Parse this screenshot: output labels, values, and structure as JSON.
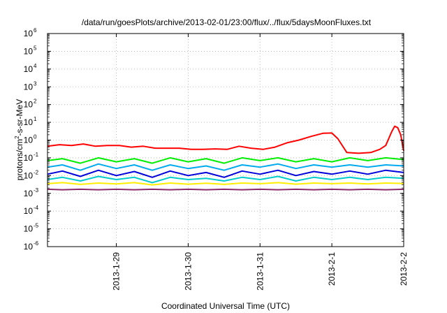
{
  "chart_data": {
    "type": "line",
    "title": "/data/run/goesPlots/archive/2013-02-01/23:00/flux/../flux/5daysMoonFluxes.txt",
    "xlabel": "Coordinated Universal Time (UTC)",
    "ylabel": "protons/cm2-s-sr-MeV",
    "ylabel_parts": {
      "pre": "protons/cm",
      "sup": "2",
      "post": "-s-sr-MeV"
    },
    "y_scale": "log",
    "ylim": [
      1e-06,
      1000000.0
    ],
    "xlim": [
      "2013-01-28T01:00",
      "2013-02-02T00:00"
    ],
    "y_ticks": [
      {
        "value": 1e-06,
        "base": "10",
        "exp": "-6"
      },
      {
        "value": 1e-05,
        "base": "10",
        "exp": "-5"
      },
      {
        "value": 0.0001,
        "base": "10",
        "exp": "-4"
      },
      {
        "value": 0.001,
        "base": "10",
        "exp": "-3"
      },
      {
        "value": 0.01,
        "base": "10",
        "exp": "-2"
      },
      {
        "value": 0.1,
        "base": "10",
        "exp": "-1"
      },
      {
        "value": 1.0,
        "base": "10",
        "exp": "0"
      },
      {
        "value": 10.0,
        "base": "10",
        "exp": "1"
      },
      {
        "value": 100.0,
        "base": "10",
        "exp": "2"
      },
      {
        "value": 1000.0,
        "base": "10",
        "exp": "3"
      },
      {
        "value": 10000.0,
        "base": "10",
        "exp": "4"
      },
      {
        "value": 100000.0,
        "base": "10",
        "exp": "5"
      },
      {
        "value": 1000000.0,
        "base": "10",
        "exp": "6"
      }
    ],
    "x_ticks": [
      {
        "value": "2013-01-29T00:00",
        "label": "2013-1-29"
      },
      {
        "value": "2013-01-30T00:00",
        "label": "2013-1-30"
      },
      {
        "value": "2013-01-31T00:00",
        "label": "2013-1-31"
      },
      {
        "value": "2013-02-01T00:00",
        "label": "2013-2-1"
      },
      {
        "value": "2013-02-02T00:00",
        "label": "2013-2-2"
      }
    ],
    "grid": true,
    "series": [
      {
        "color": "#ff0000",
        "x": [
          "2013-01-28T01:00",
          "2013-01-28T05:00",
          "2013-01-28T09:00",
          "2013-01-28T13:00",
          "2013-01-28T17:00",
          "2013-01-28T21:00",
          "2013-01-29T01:00",
          "2013-01-29T05:00",
          "2013-01-29T09:00",
          "2013-01-29T13:00",
          "2013-01-29T17:00",
          "2013-01-29T21:00",
          "2013-01-30T01:00",
          "2013-01-30T05:00",
          "2013-01-30T09:00",
          "2013-01-30T13:00",
          "2013-01-30T17:00",
          "2013-01-30T21:00",
          "2013-01-31T01:00",
          "2013-01-31T05:00",
          "2013-01-31T09:00",
          "2013-01-31T13:00",
          "2013-01-31T17:00",
          "2013-01-31T21:00",
          "2013-02-01T00:00",
          "2013-02-01T02:00",
          "2013-02-01T05:00",
          "2013-02-01T09:00",
          "2013-02-01T13:00",
          "2013-02-01T16:00",
          "2013-02-01T18:00",
          "2013-02-01T20:00",
          "2013-02-01T21:00",
          "2013-02-01T22:00",
          "2013-02-01T23:00",
          "2013-02-02T00:00"
        ],
        "values": [
          0.45,
          0.55,
          0.5,
          0.6,
          0.45,
          0.5,
          0.5,
          0.4,
          0.45,
          0.35,
          0.35,
          0.35,
          0.3,
          0.3,
          0.32,
          0.3,
          0.45,
          0.35,
          0.3,
          0.4,
          0.7,
          1.0,
          1.6,
          2.4,
          2.5,
          1.2,
          0.2,
          0.18,
          0.2,
          0.3,
          0.5,
          3.0,
          6.0,
          5.0,
          2.0,
          0.25
        ]
      },
      {
        "color": "#00ee00",
        "x": [
          "2013-01-28T01:00",
          "2013-01-28T06:00",
          "2013-01-28T12:00",
          "2013-01-28T18:00",
          "2013-01-29T00:00",
          "2013-01-29T06:00",
          "2013-01-29T12:00",
          "2013-01-29T18:00",
          "2013-01-30T00:00",
          "2013-01-30T06:00",
          "2013-01-30T12:00",
          "2013-01-30T18:00",
          "2013-01-31T00:00",
          "2013-01-31T06:00",
          "2013-01-31T12:00",
          "2013-01-31T18:00",
          "2013-02-01T00:00",
          "2013-02-01T06:00",
          "2013-02-01T12:00",
          "2013-02-01T18:00",
          "2013-02-02T00:00"
        ],
        "values": [
          0.07,
          0.09,
          0.05,
          0.1,
          0.06,
          0.09,
          0.05,
          0.1,
          0.06,
          0.09,
          0.05,
          0.1,
          0.07,
          0.1,
          0.06,
          0.09,
          0.06,
          0.1,
          0.07,
          0.1,
          0.08
        ]
      },
      {
        "color": "#00aaee",
        "x": [
          "2013-01-28T01:00",
          "2013-01-28T06:00",
          "2013-01-28T12:00",
          "2013-01-28T18:00",
          "2013-01-29T00:00",
          "2013-01-29T06:00",
          "2013-01-29T12:00",
          "2013-01-29T18:00",
          "2013-01-30T00:00",
          "2013-01-30T06:00",
          "2013-01-30T12:00",
          "2013-01-30T18:00",
          "2013-01-31T00:00",
          "2013-01-31T06:00",
          "2013-01-31T12:00",
          "2013-01-31T18:00",
          "2013-02-01T00:00",
          "2013-02-01T06:00",
          "2013-02-01T12:00",
          "2013-02-01T18:00",
          "2013-02-02T00:00"
        ],
        "values": [
          0.03,
          0.04,
          0.02,
          0.045,
          0.025,
          0.04,
          0.02,
          0.04,
          0.025,
          0.035,
          0.02,
          0.04,
          0.03,
          0.045,
          0.025,
          0.04,
          0.03,
          0.04,
          0.03,
          0.04,
          0.035
        ]
      },
      {
        "color": "#0000dd",
        "x": [
          "2013-01-28T01:00",
          "2013-01-28T06:00",
          "2013-01-28T12:00",
          "2013-01-28T18:00",
          "2013-01-29T00:00",
          "2013-01-29T06:00",
          "2013-01-29T12:00",
          "2013-01-29T18:00",
          "2013-01-30T00:00",
          "2013-01-30T06:00",
          "2013-01-30T12:00",
          "2013-01-30T18:00",
          "2013-01-31T00:00",
          "2013-01-31T06:00",
          "2013-01-31T12:00",
          "2013-01-31T18:00",
          "2013-02-01T00:00",
          "2013-02-01T06:00",
          "2013-02-01T12:00",
          "2013-02-01T18:00",
          "2013-02-02T00:00"
        ],
        "values": [
          0.012,
          0.018,
          0.009,
          0.02,
          0.01,
          0.017,
          0.008,
          0.018,
          0.01,
          0.015,
          0.008,
          0.018,
          0.012,
          0.02,
          0.01,
          0.017,
          0.012,
          0.018,
          0.012,
          0.02,
          0.015
        ]
      },
      {
        "color": "#00cccc",
        "x": [
          "2013-01-28T01:00",
          "2013-01-28T06:00",
          "2013-01-28T12:00",
          "2013-01-28T18:00",
          "2013-01-29T00:00",
          "2013-01-29T06:00",
          "2013-01-29T12:00",
          "2013-01-29T18:00",
          "2013-01-30T00:00",
          "2013-01-30T06:00",
          "2013-01-30T12:00",
          "2013-01-30T18:00",
          "2013-01-31T00:00",
          "2013-01-31T06:00",
          "2013-01-31T12:00",
          "2013-01-31T18:00",
          "2013-02-01T00:00",
          "2013-02-01T06:00",
          "2013-02-01T12:00",
          "2013-02-01T18:00",
          "2013-02-02T00:00"
        ],
        "values": [
          0.006,
          0.008,
          0.005,
          0.009,
          0.006,
          0.008,
          0.004,
          0.008,
          0.006,
          0.007,
          0.005,
          0.008,
          0.006,
          0.009,
          0.005,
          0.008,
          0.006,
          0.008,
          0.006,
          0.008,
          0.007
        ]
      },
      {
        "color": "#ffee00",
        "x": [
          "2013-01-28T01:00",
          "2013-01-28T06:00",
          "2013-01-28T12:00",
          "2013-01-28T18:00",
          "2013-01-29T00:00",
          "2013-01-29T06:00",
          "2013-01-29T12:00",
          "2013-01-29T18:00",
          "2013-01-30T00:00",
          "2013-01-30T06:00",
          "2013-01-30T12:00",
          "2013-01-30T18:00",
          "2013-01-31T00:00",
          "2013-01-31T06:00",
          "2013-01-31T12:00",
          "2013-01-31T18:00",
          "2013-02-01T00:00",
          "2013-02-01T06:00",
          "2013-02-01T12:00",
          "2013-02-01T18:00",
          "2013-02-02T00:00"
        ],
        "values": [
          0.0035,
          0.004,
          0.0032,
          0.0038,
          0.0034,
          0.004,
          0.003,
          0.0038,
          0.0033,
          0.0037,
          0.0032,
          0.0038,
          0.0035,
          0.004,
          0.0033,
          0.0038,
          0.0035,
          0.0038,
          0.0034,
          0.0038,
          0.0036
        ]
      },
      {
        "color": "#8b2a6b",
        "x": [
          "2013-01-28T01:00",
          "2013-01-28T06:00",
          "2013-01-28T12:00",
          "2013-01-28T18:00",
          "2013-01-29T00:00",
          "2013-01-29T06:00",
          "2013-01-29T12:00",
          "2013-01-29T18:00",
          "2013-01-30T00:00",
          "2013-01-30T06:00",
          "2013-01-30T12:00",
          "2013-01-30T18:00",
          "2013-01-31T00:00",
          "2013-01-31T06:00",
          "2013-01-31T12:00",
          "2013-01-31T18:00",
          "2013-02-01T00:00",
          "2013-02-01T06:00",
          "2013-02-01T12:00",
          "2013-02-01T18:00",
          "2013-02-02T00:00"
        ],
        "values": [
          0.0017,
          0.0016,
          0.0017,
          0.0016,
          0.0017,
          0.0016,
          0.0017,
          0.0016,
          0.0017,
          0.0016,
          0.0017,
          0.0016,
          0.0017,
          0.0016,
          0.0017,
          0.0016,
          0.0017,
          0.0016,
          0.0017,
          0.0016,
          0.0017
        ]
      }
    ]
  }
}
